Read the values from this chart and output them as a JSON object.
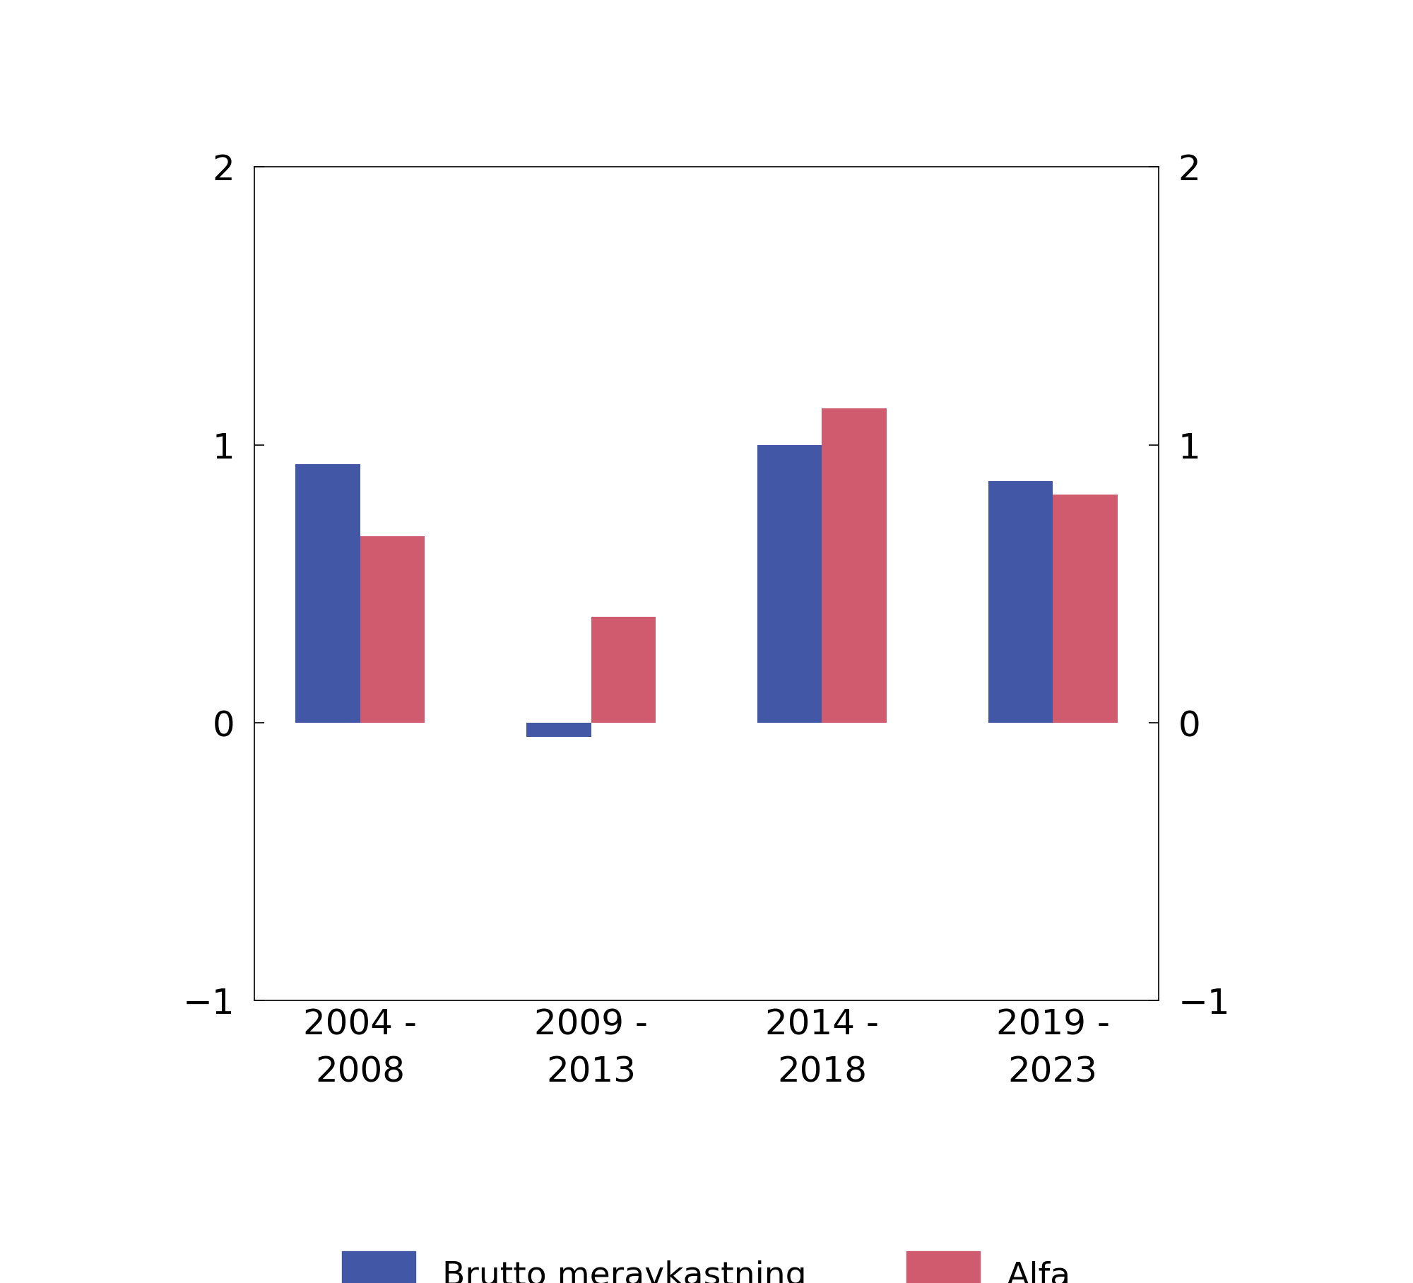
{
  "categories": [
    "2004 -\n2008",
    "2009 -\n2013",
    "2014 -\n2018",
    "2019 -\n2023"
  ],
  "brutto": [
    0.93,
    -0.05,
    1.0,
    0.87
  ],
  "alfa": [
    0.67,
    0.38,
    1.13,
    0.82
  ],
  "brutto_color": "#4257A5",
  "alfa_color": "#D05A6E",
  "ylim": [
    -1,
    2
  ],
  "yticks": [
    -1,
    0,
    1,
    2
  ],
  "bar_width": 0.28,
  "legend_labels": [
    "Brutto meravkastning",
    "Alfa"
  ],
  "background_color": "#ffffff",
  "tick_fontsize": 36,
  "legend_fontsize": 34
}
